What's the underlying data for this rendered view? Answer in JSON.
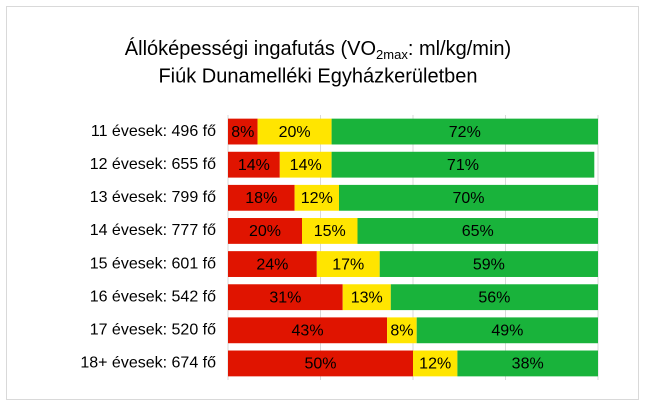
{
  "chart_data": {
    "type": "stacked-bar-horizontal",
    "title": [
      "Állóképességi ingafutás (VO",
      "2max",
      ": ml/kg/min)"
    ],
    "subtitle": "Fiúk Dunamelléki Egyházkerületben",
    "categories": [
      "11 évesek: 496 fő",
      "12 évesek: 655 fő",
      "13 évesek: 799 fő",
      "14 évesek: 777 fő",
      "15 évesek: 601 fő",
      "16 évesek: 542 fő",
      "17 évesek: 520 fő",
      "18+ évesek: 674 fő"
    ],
    "series": [
      {
        "color": "#e01400",
        "values": [
          8,
          14,
          18,
          20,
          24,
          31,
          43,
          50
        ],
        "value_labels": [
          "8%",
          "14%",
          "18%",
          "20%",
          "24%",
          "31%",
          "43%",
          "50%"
        ]
      },
      {
        "color": "#ffe500",
        "values": [
          20,
          14,
          12,
          15,
          17,
          13,
          8,
          12
        ],
        "value_labels": [
          "20%",
          "14%",
          "12%",
          "15%",
          "17%",
          "13%",
          "8%",
          "12%"
        ]
      },
      {
        "color": "#19b33b",
        "values": [
          72,
          71,
          70,
          65,
          59,
          56,
          49,
          38
        ],
        "value_labels": [
          "72%",
          "71%",
          "70%",
          "65%",
          "59%",
          "56%",
          "49%",
          "38%"
        ]
      }
    ],
    "xlim": [
      0,
      100
    ],
    "xticks": [
      0,
      25,
      50,
      75,
      100
    ],
    "grid": true
  }
}
